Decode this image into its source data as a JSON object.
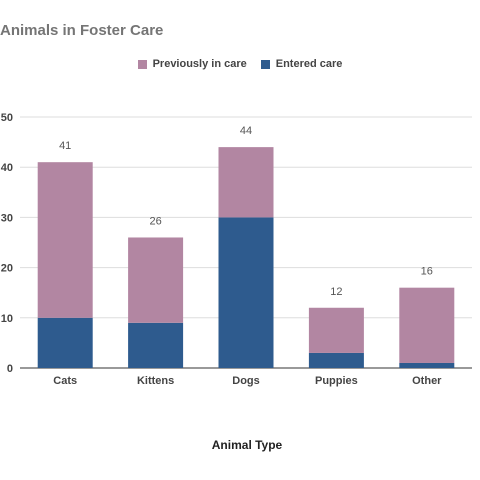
{
  "chart_data": {
    "type": "bar",
    "stacked": true,
    "title": "Animals in Foster Care",
    "xlabel": "Animal Type",
    "ylabel": "",
    "categories": [
      "Cats",
      "Kittens",
      "Dogs",
      "Puppies",
      "Other"
    ],
    "series": [
      {
        "name": "Entered care",
        "color": "#2e5b8e",
        "values": [
          10,
          9,
          30,
          3,
          1
        ]
      },
      {
        "name": "Previously in care",
        "color": "#b286a2",
        "values": [
          31,
          17,
          14,
          9,
          15
        ]
      }
    ],
    "totals": [
      41,
      26,
      44,
      12,
      16
    ],
    "ylim": [
      0,
      50
    ],
    "yticks": [
      0,
      10,
      20,
      30,
      40,
      50
    ],
    "grid": true,
    "legend_position": "top-center"
  }
}
